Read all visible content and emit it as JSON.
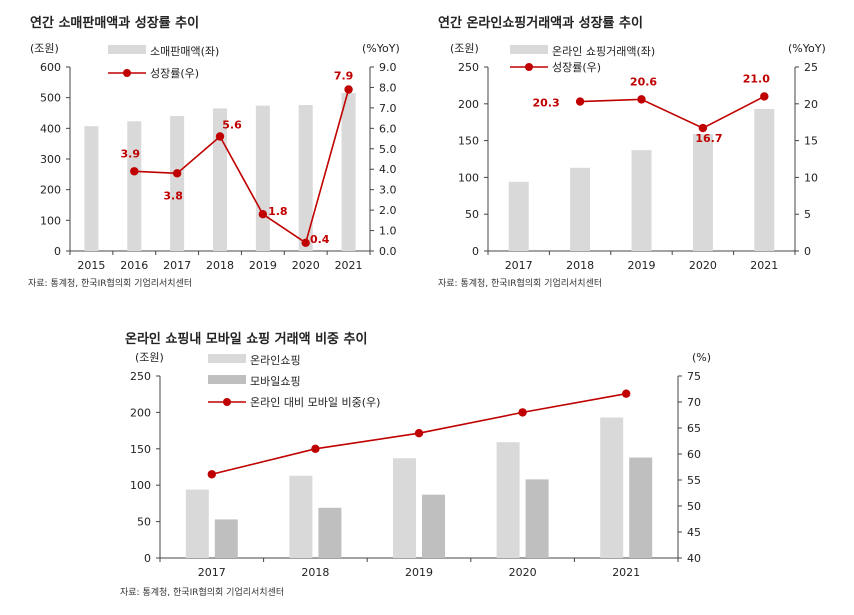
{
  "chart_data": [
    {
      "type": "bar",
      "title": "연간 소매판매액과 성장률 추이",
      "left_unit": "(조원)",
      "right_unit": "(%YoY)",
      "categories": [
        "2015",
        "2016",
        "2017",
        "2018",
        "2019",
        "2020",
        "2021"
      ],
      "series": [
        {
          "name": "소매판매액(좌)",
          "type": "bar",
          "axis": "left",
          "color": "#d9d9d9",
          "values": [
            407,
            423,
            440,
            465,
            474,
            476,
            515
          ]
        },
        {
          "name": "성장률(우)",
          "type": "line",
          "axis": "right",
          "color": "#c00000",
          "values": [
            null,
            3.9,
            3.8,
            5.6,
            1.8,
            0.4,
            7.9
          ],
          "labels": [
            "",
            "3.9",
            "3.8",
            "5.6",
            "1.8",
            "0.4",
            "7.9"
          ]
        }
      ],
      "ylim_left": [
        0,
        600
      ],
      "yticks_left": [
        "0",
        "100",
        "200",
        "300",
        "400",
        "500",
        "600"
      ],
      "ylim_right": [
        0,
        9
      ],
      "yticks_right": [
        "0.0",
        "1.0",
        "2.0",
        "3.0",
        "4.0",
        "5.0",
        "6.0",
        "7.0",
        "8.0",
        "9.0"
      ],
      "source": "자료: 통계청, 한국IR협의회 기업리서치센터"
    },
    {
      "type": "bar",
      "title": "연간 온라인쇼핑거래액과 성장률 추이",
      "left_unit": "(조원)",
      "right_unit": "(%YoY)",
      "categories": [
        "2017",
        "2018",
        "2019",
        "2020",
        "2021"
      ],
      "series": [
        {
          "name": "온라인 쇼핑거래액(좌)",
          "type": "bar",
          "axis": "left",
          "color": "#d9d9d9",
          "values": [
            94,
            113,
            137,
            159,
            193
          ]
        },
        {
          "name": "성장률(우)",
          "type": "line",
          "axis": "right",
          "color": "#c00000",
          "values": [
            null,
            20.3,
            20.6,
            16.7,
            21.0
          ],
          "labels": [
            "",
            "20.3",
            "20.6",
            "16.7",
            "21.0"
          ]
        }
      ],
      "ylim_left": [
        0,
        250
      ],
      "yticks_left": [
        "0",
        "50",
        "100",
        "150",
        "200",
        "250"
      ],
      "ylim_right": [
        0,
        25
      ],
      "yticks_right": [
        "0",
        "5",
        "10",
        "15",
        "20",
        "25"
      ],
      "source": "자료: 통계청, 한국IR협의회 기업리서치센터"
    },
    {
      "type": "bar",
      "title": "온라인 쇼핑내 모바일 쇼핑 거래액 비중 추이",
      "left_unit": "(조원)",
      "right_unit": "(%)",
      "categories": [
        "2017",
        "2018",
        "2019",
        "2020",
        "2021"
      ],
      "series": [
        {
          "name": "온라인쇼핑",
          "type": "bar",
          "axis": "left",
          "color": "#d9d9d9",
          "values": [
            94,
            113,
            137,
            159,
            193
          ]
        },
        {
          "name": "모바일쇼핑",
          "type": "bar",
          "axis": "left",
          "color": "#bfbfbf",
          "values": [
            53,
            69,
            87,
            108,
            138
          ]
        },
        {
          "name": "온라인 대비 모바일 비중(우)",
          "type": "line",
          "axis": "right",
          "color": "#c00000",
          "values": [
            56.1,
            61.0,
            64.0,
            68.0,
            71.6
          ]
        }
      ],
      "ylim_left": [
        0,
        250
      ],
      "yticks_left": [
        "0",
        "50",
        "100",
        "150",
        "200",
        "250"
      ],
      "ylim_right": [
        40,
        75
      ],
      "yticks_right": [
        "40",
        "45",
        "50",
        "55",
        "60",
        "65",
        "70",
        "75"
      ],
      "source": "자료: 통계청, 한국IR협의회 기업리서치센터"
    }
  ]
}
